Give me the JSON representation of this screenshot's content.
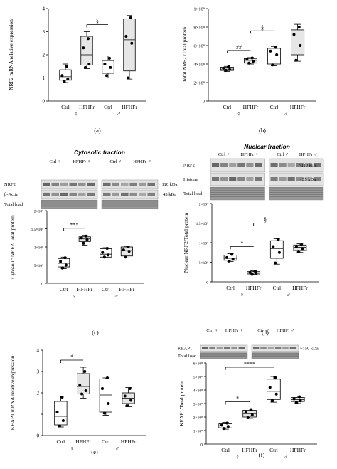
{
  "panels": [
    {
      "id": "a",
      "panel_label": "(a)",
      "ylabel": "NRF2 mRNA relative expression",
      "yticks": [
        "0",
        "1",
        "2",
        "3",
        "4"
      ],
      "ylim": [
        0,
        4
      ],
      "categories": [
        "Ctrl",
        "HFHFr",
        "Ctrl",
        "HFHFr"
      ],
      "sex_labels": [
        "♀",
        "♂"
      ],
      "annotations": [
        {
          "text": "§",
          "from": 1,
          "to": 2
        }
      ],
      "chart_data": {
        "type": "box",
        "categories": [
          "Ctrl",
          "HFHFr",
          "Ctrl",
          "HFHFr"
        ],
        "groups": [
          "♀",
          "♀",
          "♂",
          "♂"
        ],
        "boxes": [
          {
            "min": 0.8,
            "q1": 0.9,
            "median": 1.05,
            "q3": 1.35,
            "max": 1.6,
            "points": [
              0.85,
              0.95,
              1.1,
              1.5
            ],
            "fill": "#ffffff"
          },
          {
            "min": 1.4,
            "q1": 1.55,
            "median": 2.0,
            "q3": 2.8,
            "max": 3.0,
            "points": [
              1.45,
              1.6,
              2.3,
              2.7
            ],
            "fill": "#e6e6e6"
          },
          {
            "min": 1.0,
            "q1": 1.2,
            "median": 1.55,
            "q3": 1.75,
            "max": 1.95,
            "points": [
              1.1,
              1.45,
              1.6,
              1.85
            ],
            "fill": "#ffffff"
          },
          {
            "min": 0.95,
            "q1": 1.3,
            "median": 2.65,
            "q3": 3.55,
            "max": 3.7,
            "points": [
              1.0,
              2.5,
              2.8,
              3.6
            ],
            "fill": "#e6e6e6"
          }
        ]
      }
    },
    {
      "id": "b",
      "panel_label": "(b)",
      "ylabel": "Total NRF2 /Total protein",
      "yticks": [
        "0",
        "2×10⁸",
        "4×10⁸",
        "6×10⁸",
        "8×10⁸",
        "1×10⁹"
      ],
      "ylim": [
        0,
        1000000000
      ],
      "categories": [
        "Ctrl",
        "HFHFr",
        "Ctrl",
        "HFHFr"
      ],
      "sex_labels": [
        "♀",
        "♂"
      ],
      "annotations": [
        {
          "text": "##",
          "from": 0,
          "to": 1
        },
        {
          "text": "§",
          "from": 1,
          "to": 2
        }
      ],
      "chart_data": {
        "type": "box",
        "categories": [
          "Ctrl",
          "HFHFr",
          "Ctrl",
          "HFHFr"
        ],
        "groups": [
          "♀",
          "♀",
          "♂",
          "♂"
        ],
        "boxes": [
          {
            "min": 320000000,
            "q1": 330000000,
            "median": 345000000,
            "q3": 365000000,
            "max": 375000000,
            "points": [
              330000000,
              340000000,
              355000000,
              370000000
            ],
            "fill": "#ffffff"
          },
          {
            "min": 400000000,
            "q1": 410000000,
            "median": 440000000,
            "q3": 460000000,
            "max": 470000000,
            "points": [
              410000000,
              430000000,
              455000000,
              465000000
            ],
            "fill": "#e6e6e6"
          },
          {
            "min": 380000000,
            "q1": 400000000,
            "median": 520000000,
            "q3": 570000000,
            "max": 590000000,
            "points": [
              390000000,
              500000000,
              540000000,
              580000000
            ],
            "fill": "#ffffff"
          },
          {
            "min": 430000000,
            "q1": 500000000,
            "median": 650000000,
            "q3": 770000000,
            "max": 830000000,
            "points": [
              440000000,
              600000000,
              720000000,
              800000000
            ],
            "fill": "#e6e6e6"
          }
        ]
      }
    },
    {
      "id": "c",
      "panel_label": "(c)",
      "blot_title": "Cytosolic fraction",
      "blot_lane_labels": [
        "Ctrl ♀",
        "HFHFr ♀",
        "Ctrl ♂",
        "HFHFr ♂"
      ],
      "blot_row_labels": [
        "NRF2",
        "β-Actin",
        "Total load"
      ],
      "blot_kda": [
        "~110 kDa",
        "~ 45 kDa"
      ],
      "ylabel": "Cytosolic NRF2/Total protein",
      "yticks": [
        "0",
        "5×10⁷",
        "1×10⁸",
        "1.5×10⁸",
        "2×10⁸"
      ],
      "ylim": [
        0,
        200000000
      ],
      "categories": [
        "Ctrl",
        "HFHFr",
        "Ctrl",
        "HFHFr"
      ],
      "sex_labels": [
        "♀",
        "♂"
      ],
      "annotations": [
        {
          "text": "***",
          "from": 0,
          "to": 1
        }
      ],
      "chart_data": {
        "type": "box",
        "categories": [
          "Ctrl",
          "HFHFr",
          "Ctrl",
          "HFHFr"
        ],
        "groups": [
          "♀",
          "♀",
          "♂",
          "♂"
        ],
        "boxes": [
          {
            "min": 40000000,
            "q1": 45000000,
            "median": 55000000,
            "q3": 68000000,
            "max": 72000000,
            "points": [
              42000000,
              50000000,
              60000000,
              70000000
            ],
            "fill": "#ffffff"
          },
          {
            "min": 105000000,
            "q1": 115000000,
            "median": 122000000,
            "q3": 128000000,
            "max": 132000000,
            "points": [
              110000000,
              120000000,
              125000000,
              130000000
            ],
            "fill": "#e6e6e6"
          },
          {
            "min": 70000000,
            "q1": 72000000,
            "median": 80000000,
            "q3": 95000000,
            "max": 98000000,
            "points": [
              72000000,
              78000000,
              85000000,
              96000000
            ],
            "fill": "#ffffff"
          },
          {
            "min": 70000000,
            "q1": 75000000,
            "median": 90000000,
            "q3": 100000000,
            "max": 102000000,
            "points": [
              72000000,
              88000000,
              92000000,
              100000000
            ],
            "fill": "#e6e6e6"
          }
        ]
      }
    },
    {
      "id": "d",
      "panel_label": "(d)",
      "blot_title": "Nuclear fraction",
      "blot_lane_labels": [
        "Ctrl ♀",
        "HFHFr ♀",
        "Ctrl ♂",
        "HFHFr ♂"
      ],
      "blot_row_labels": [
        "NRF2",
        "Histone",
        "Total load"
      ],
      "blot_kda": [
        "~110 kDa",
        "~ 35 kDa"
      ],
      "ylabel": "Nuclear NRF2/Total protein",
      "yticks": [
        "0",
        "5×10⁶",
        "1×10⁷",
        "1.5×10⁷",
        "2×10⁷"
      ],
      "ylim": [
        0,
        20000000
      ],
      "categories": [
        "Ctrl",
        "HFHFr",
        "Ctrl",
        "HFHFr"
      ],
      "sex_labels": [
        "♀",
        "♂"
      ],
      "annotations": [
        {
          "text": "*",
          "from": 0,
          "to": 1
        },
        {
          "text": "§",
          "from": 1,
          "to": 2
        }
      ],
      "chart_data": {
        "type": "box",
        "categories": [
          "Ctrl",
          "HFHFr",
          "Ctrl",
          "HFHFr"
        ],
        "groups": [
          "♀",
          "♀",
          "♂",
          "♂"
        ],
        "boxes": [
          {
            "min": 5200000,
            "q1": 5500000,
            "median": 6000000,
            "q3": 6800000,
            "max": 7200000,
            "points": [
              5300000,
              5800000,
              6200000,
              7000000
            ],
            "fill": "#ffffff"
          },
          {
            "min": 1800000,
            "q1": 2000000,
            "median": 2300000,
            "q3": 2600000,
            "max": 2800000,
            "points": [
              1900000,
              2200000,
              2400000,
              2700000
            ],
            "fill": "#e6e6e6"
          },
          {
            "min": 4500000,
            "q1": 6000000,
            "median": 8500000,
            "q3": 10500000,
            "max": 11000000,
            "points": [
              4800000,
              7500000,
              9000000,
              10800000
            ],
            "fill": "#ffffff"
          },
          {
            "min": 7500000,
            "q1": 8000000,
            "median": 8800000,
            "q3": 9400000,
            "max": 9700000,
            "points": [
              7800000,
              8500000,
              9000000,
              9500000
            ],
            "fill": "#e6e6e6"
          }
        ]
      }
    },
    {
      "id": "e",
      "panel_label": "(e)",
      "ylabel": "KEAP1 mRNA relative expression",
      "yticks": [
        "0",
        "1",
        "2",
        "3",
        "4"
      ],
      "ylim": [
        0,
        4
      ],
      "categories": [
        "Ctrl",
        "HFHFr",
        "Ctrl",
        "HFHFr"
      ],
      "sex_labels": [
        "♀",
        "♂"
      ],
      "annotations": [
        {
          "text": "*",
          "from": 0,
          "to": 1
        }
      ],
      "chart_data": {
        "type": "box",
        "categories": [
          "Ctrl",
          "HFHFr",
          "Ctrl",
          "HFHFr"
        ],
        "groups": [
          "♀",
          "♀",
          "♂",
          "♂"
        ],
        "boxes": [
          {
            "min": 0.4,
            "q1": 0.5,
            "median": 0.9,
            "q3": 1.6,
            "max": 1.85,
            "points": [
              0.45,
              0.7,
              1.1,
              1.8
            ],
            "fill": "#ffffff"
          },
          {
            "min": 1.75,
            "q1": 1.95,
            "median": 2.3,
            "q3": 2.9,
            "max": 3.2,
            "points": [
              1.95,
              2.1,
              2.35,
              3.0
            ],
            "fill": "#e6e6e6"
          },
          {
            "min": 0.95,
            "q1": 1.1,
            "median": 1.9,
            "q3": 2.65,
            "max": 2.7,
            "points": [
              1.05,
              1.5,
              2.2,
              2.7
            ],
            "fill": "#ffffff"
          },
          {
            "min": 1.35,
            "q1": 1.5,
            "median": 1.75,
            "q3": 2.0,
            "max": 2.25,
            "points": [
              1.4,
              1.65,
              1.85,
              2.2
            ],
            "fill": "#e6e6e6"
          }
        ]
      }
    },
    {
      "id": "f",
      "panel_label": "(f)",
      "blot_title": "",
      "blot_lane_labels": [
        "Ctrl ♀",
        "HFHFr ♀",
        "Ctrl ♂",
        "HFHFr ♂"
      ],
      "blot_row_labels": [
        "KEAP1",
        "Total load"
      ],
      "blot_kda": [
        "~150 kDa"
      ],
      "ylabel": "KEAP1/Total protein",
      "yticks": [
        "0",
        "1×10⁸",
        "2×10⁸",
        "3×10⁸",
        "4×10⁸",
        "5×10⁸",
        "6×10⁸"
      ],
      "ylim": [
        0,
        600000000
      ],
      "categories": [
        "Ctrl",
        "HFHFr",
        "Ctrl",
        "HFHFr"
      ],
      "sex_labels": [
        "♀",
        "♂"
      ],
      "annotations": [
        {
          "text": "*",
          "from": 0,
          "to": 1
        },
        {
          "text": "****",
          "from": 0,
          "to": 2
        }
      ],
      "chart_data": {
        "type": "box",
        "categories": [
          "Ctrl",
          "HFHFr",
          "Ctrl",
          "HFHFr"
        ],
        "groups": [
          "♀",
          "♀",
          "♂",
          "♂"
        ],
        "boxes": [
          {
            "min": 110000000,
            "q1": 120000000,
            "median": 135000000,
            "q3": 150000000,
            "max": 160000000,
            "points": [
              115000000,
              130000000,
              140000000,
              155000000
            ],
            "fill": "#ffffff"
          },
          {
            "min": 190000000,
            "q1": 200000000,
            "median": 225000000,
            "q3": 250000000,
            "max": 260000000,
            "points": [
              195000000,
              215000000,
              235000000,
              255000000
            ],
            "fill": "#e6e6e6"
          },
          {
            "min": 310000000,
            "q1": 330000000,
            "median": 390000000,
            "q3": 480000000,
            "max": 500000000,
            "points": [
              320000000,
              370000000,
              420000000,
              490000000
            ],
            "fill": "#ffffff"
          },
          {
            "min": 300000000,
            "q1": 315000000,
            "median": 330000000,
            "q3": 345000000,
            "max": 355000000,
            "points": [
              305000000,
              320000000,
              335000000,
              350000000
            ],
            "fill": "#e6e6e6"
          }
        ]
      }
    }
  ]
}
